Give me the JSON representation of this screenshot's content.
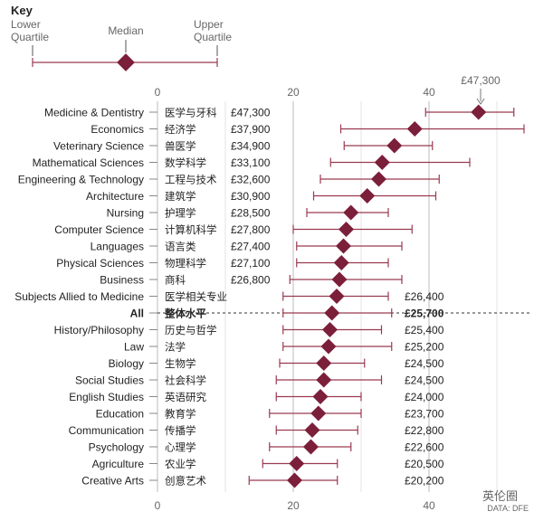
{
  "key": {
    "title": "Key",
    "lower_quartile_label": [
      "Lower",
      "Quartile"
    ],
    "median_label": "Median",
    "upper_quartile_label": [
      "Upper",
      "Quartile"
    ]
  },
  "source": "DATA: DFE",
  "watermark": "英伦圈",
  "top_callout": "£47,300",
  "colors": {
    "marker": "#7b1f3a",
    "whisker": "#9a3a4f",
    "text": "#222222",
    "grid": "#bbbbbb"
  },
  "chart_data": {
    "type": "dot-range",
    "x_ticks": [
      0,
      20,
      40
    ],
    "xlim": [
      0,
      55
    ],
    "median_all": 25700,
    "rows": [
      {
        "label": "Medicine & Dentistry",
        "cn": "医学与牙科",
        "value": "£47,300",
        "median": 47.3,
        "low": 39.5,
        "high": 52.5,
        "value_side": "left"
      },
      {
        "label": "Economics",
        "cn": "经济学",
        "value": "£37,900",
        "median": 37.9,
        "low": 27.0,
        "high": 54.0,
        "value_side": "left"
      },
      {
        "label": "Veterinary Science",
        "cn": "兽医学",
        "value": "£34,900",
        "median": 34.9,
        "low": 27.5,
        "high": 40.5,
        "value_side": "left"
      },
      {
        "label": "Mathematical Sciences",
        "cn": "数学科学",
        "value": "£33,100",
        "median": 33.1,
        "low": 25.5,
        "high": 46.0,
        "value_side": "left"
      },
      {
        "label": "Engineering & Technology",
        "cn": "工程与技术",
        "value": "£32,600",
        "median": 32.6,
        "low": 24.0,
        "high": 41.5,
        "value_side": "left"
      },
      {
        "label": "Architecture",
        "cn": "建筑学",
        "value": "£30,900",
        "median": 30.9,
        "low": 23.0,
        "high": 41.0,
        "value_side": "left"
      },
      {
        "label": "Nursing",
        "cn": "护理学",
        "value": "£28,500",
        "median": 28.5,
        "low": 22.0,
        "high": 34.0,
        "value_side": "left"
      },
      {
        "label": "Computer Science",
        "cn": "计算机科学",
        "value": "£27,800",
        "median": 27.8,
        "low": 20.0,
        "high": 37.5,
        "value_side": "left"
      },
      {
        "label": "Languages",
        "cn": "语言类",
        "value": "£27,400",
        "median": 27.4,
        "low": 20.5,
        "high": 36.0,
        "value_side": "left"
      },
      {
        "label": "Physical Sciences",
        "cn": "物理科学",
        "value": "£27,100",
        "median": 27.1,
        "low": 20.5,
        "high": 34.0,
        "value_side": "left"
      },
      {
        "label": "Business",
        "cn": "商科",
        "value": "£26,800",
        "median": 26.8,
        "low": 19.5,
        "high": 36.0,
        "value_side": "left"
      },
      {
        "label": "Subjects Allied to Medicine",
        "cn": "医学相关专业",
        "value": "£26,400",
        "median": 26.4,
        "low": 18.5,
        "high": 34.0,
        "value_side": "right"
      },
      {
        "label": "All",
        "cn": "整体水平",
        "value": "£25,700",
        "median": 25.7,
        "low": 18.5,
        "high": 34.5,
        "value_side": "right",
        "bold": true
      },
      {
        "label": "History/Philosophy",
        "cn": "历史与哲学",
        "value": "£25,400",
        "median": 25.4,
        "low": 18.5,
        "high": 33.0,
        "value_side": "right"
      },
      {
        "label": "Law",
        "cn": "法学",
        "value": "£25,200",
        "median": 25.2,
        "low": 18.5,
        "high": 34.5,
        "value_side": "right"
      },
      {
        "label": "Biology",
        "cn": "生物学",
        "value": "£24,500",
        "median": 24.5,
        "low": 18.0,
        "high": 30.5,
        "value_side": "right"
      },
      {
        "label": "Social Studies",
        "cn": "社会科学",
        "value": "£24,500",
        "median": 24.5,
        "low": 17.5,
        "high": 33.0,
        "value_side": "right"
      },
      {
        "label": "English Studies",
        "cn": "英语研究",
        "value": "£24,000",
        "median": 24.0,
        "low": 17.5,
        "high": 30.0,
        "value_side": "right"
      },
      {
        "label": "Education",
        "cn": "教育学",
        "value": "£23,700",
        "median": 23.7,
        "low": 16.5,
        "high": 30.0,
        "value_side": "right"
      },
      {
        "label": "Communication",
        "cn": "传播学",
        "value": "£22,800",
        "median": 22.8,
        "low": 17.5,
        "high": 29.5,
        "value_side": "right"
      },
      {
        "label": "Psychology",
        "cn": "心理学",
        "value": "£22,600",
        "median": 22.6,
        "low": 16.5,
        "high": 28.5,
        "value_side": "right"
      },
      {
        "label": "Agriculture",
        "cn": "农业学",
        "value": "£20,500",
        "median": 20.5,
        "low": 15.5,
        "high": 26.5,
        "value_side": "right"
      },
      {
        "label": "Creative Arts",
        "cn": "创意艺术",
        "value": "£20,200",
        "median": 20.2,
        "low": 13.5,
        "high": 26.5,
        "value_side": "right"
      }
    ]
  }
}
